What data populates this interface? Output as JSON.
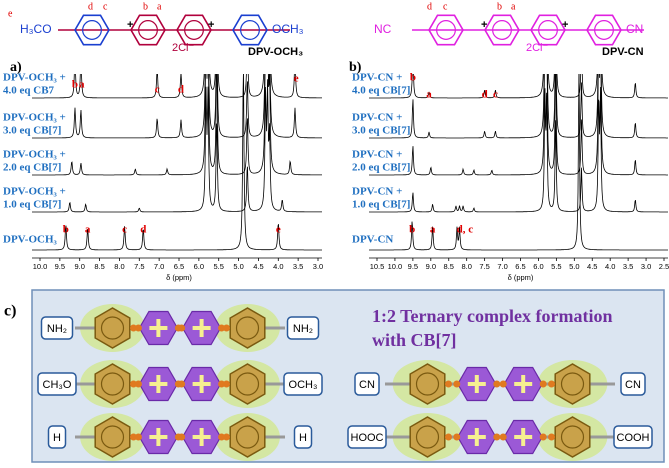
{
  "panel_a": {
    "panel_label": "a)",
    "structure": {
      "left": "H₃CO",
      "right": "OCH₃",
      "charges": [
        "+",
        "+"
      ],
      "counterion": "2Cl⁻",
      "name": "DPV-OCH₃",
      "proton_labels": [
        "e",
        "d",
        "c",
        "b",
        "a"
      ]
    },
    "traces": [
      {
        "lines": [
          "DPV-OCH₃ +",
          "4.0 eq CB7"
        ]
      },
      {
        "lines": [
          "DPV-OCH₃ +",
          "3.0 eq CB[7]"
        ]
      },
      {
        "lines": [
          "DPV-OCH₃ +",
          "2.0 eq CB[7]"
        ]
      },
      {
        "lines": [
          "DPV-OCH₃ +",
          "1.0 eq CB[7]"
        ]
      },
      {
        "lines": [
          "DPV-OCH₃"
        ]
      }
    ],
    "top_peak_labels": [
      "b",
      "a",
      "c",
      "d",
      "e"
    ],
    "bottom_peak_labels": [
      "b",
      "a",
      "c",
      "d",
      "e"
    ],
    "x_ticks": [
      "10.0",
      "9.5",
      "9.0",
      "8.5",
      "8.0",
      "7.5",
      "7.0",
      "6.5",
      "6.0",
      "5.5",
      "5.0",
      "4.5",
      "4.0",
      "3.5",
      "3.0"
    ],
    "x_label": "δ (ppm)"
  },
  "panel_b": {
    "panel_label": "b)",
    "structure": {
      "left": "NC",
      "right": "CN",
      "charges": [
        "+",
        "+"
      ],
      "counterion": "2Cl⁻",
      "name": "DPV-CN",
      "proton_labels": [
        "d",
        "c",
        "b",
        "a"
      ]
    },
    "traces": [
      {
        "lines": [
          "DPV-CN +",
          "4.0 eq CB[7]"
        ]
      },
      {
        "lines": [
          "DPV-CN +",
          "3.0 eq CB[7]"
        ]
      },
      {
        "lines": [
          "DPV-CN +",
          "2.0 eq CB[7]"
        ]
      },
      {
        "lines": [
          "DPV-CN +",
          "1.0 eq CB[7]"
        ]
      },
      {
        "lines": [
          "DPV-CN"
        ]
      }
    ],
    "top_peak_labels": [
      "b",
      "a",
      "d",
      "c"
    ],
    "bottom_peak_labels": [
      "b",
      "a",
      "d, c"
    ],
    "x_ticks": [
      "10.5",
      "10.0",
      "9.5",
      "9.0",
      "8.5",
      "8.0",
      "7.5",
      "7.0",
      "6.5",
      "6.0",
      "5.5",
      "5.0",
      "4.5",
      "4.0",
      "3.5",
      "3.0",
      "2.5"
    ],
    "x_label": "δ (ppm)"
  },
  "panel_c": {
    "panel_label": "c)",
    "title": [
      "1:2 Ternary complex formation",
      "with CB[7]"
    ],
    "complexes": [
      {
        "left": "NH₂",
        "right": "NH₂"
      },
      {
        "left": "CH₃O",
        "right": "OCH₃"
      },
      {
        "left": "H",
        "right": "H"
      },
      {
        "left": "CN",
        "right": "CN"
      },
      {
        "left": "HOOC",
        "right": "COOH"
      }
    ]
  }
}
